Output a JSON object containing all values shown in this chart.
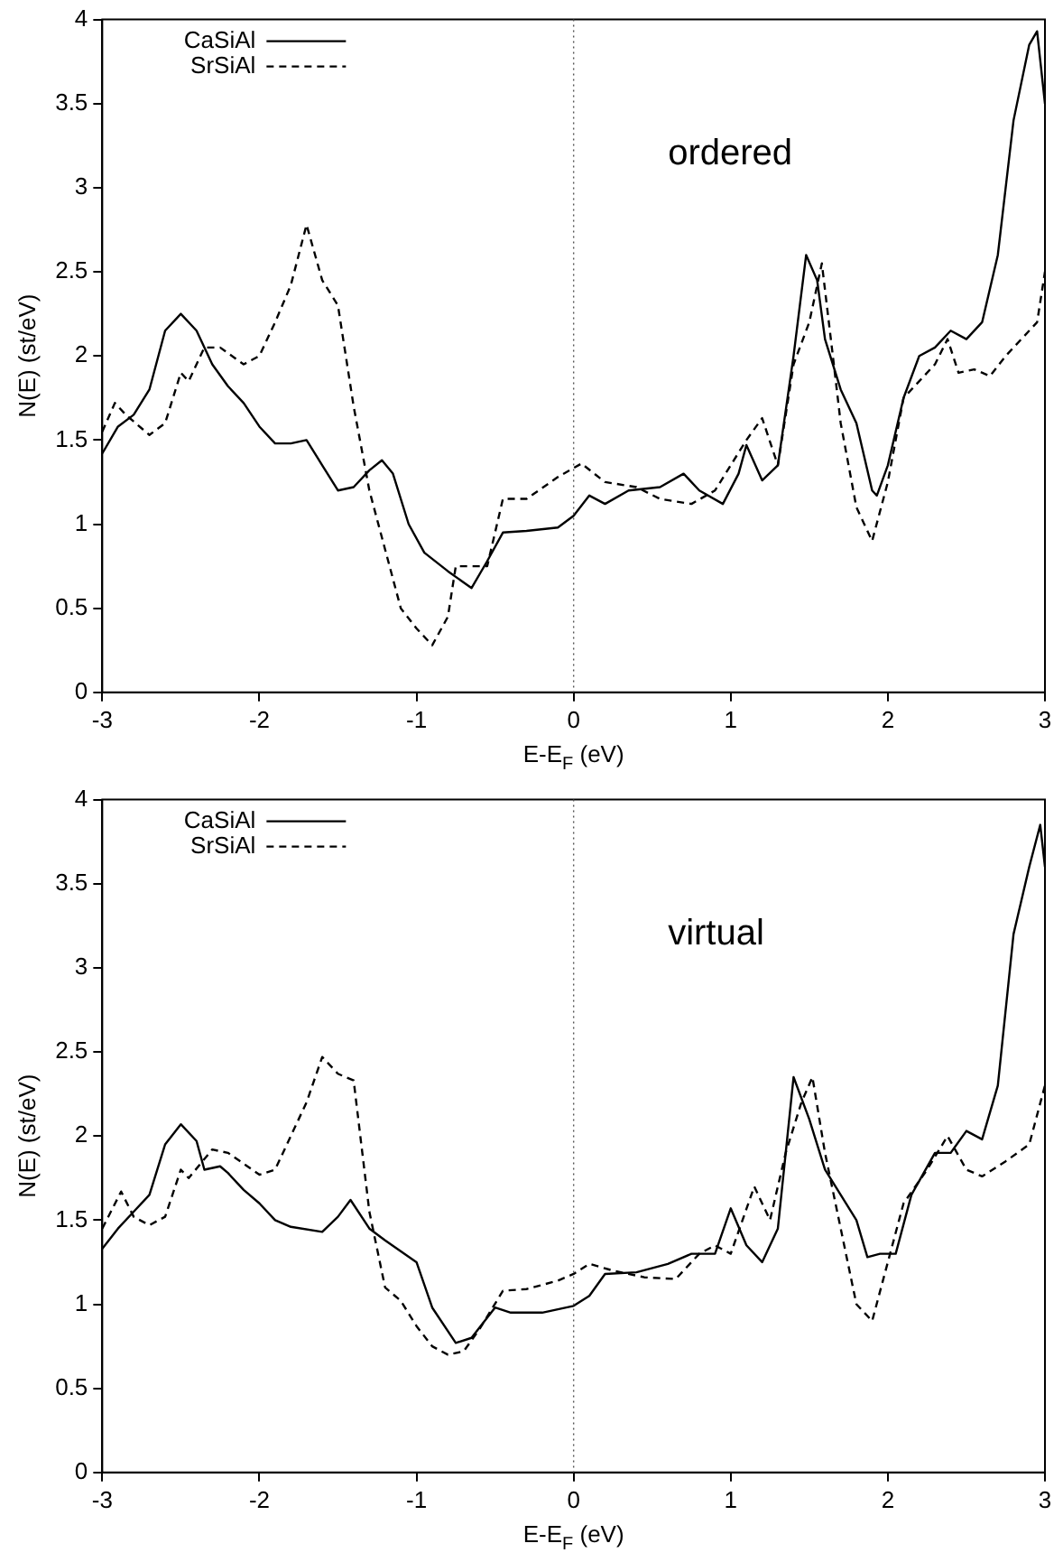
{
  "chart_data": [
    {
      "type": "line",
      "xlabel": "E-E$_{F}$ (eV)",
      "ylabel": "N(E) (st/eV)",
      "annotations": [
        "ordered"
      ],
      "legend": "top left",
      "marker": "none",
      "grid": false,
      "xlim": [
        -3,
        3
      ],
      "xticks": [
        -3,
        -2,
        -1,
        0,
        1,
        2,
        3
      ],
      "ylim": [
        0,
        4
      ],
      "yticks": [
        0,
        0.5,
        1,
        1.5,
        2,
        2.5,
        3,
        3.5,
        4
      ],
      "ref_lines": [
        {
          "axis": "x",
          "value": 0,
          "line_style": "dotted"
        }
      ],
      "series": [
        {
          "name": "CaSiAl",
          "color": "#000000",
          "line_style": "solid",
          "x": [
            -3,
            -2.9,
            -2.8,
            -2.7,
            -2.6,
            -2.5,
            -2.4,
            -2.3,
            -2.2,
            -2.1,
            -2.0,
            -1.9,
            -1.8,
            -1.7,
            -1.6,
            -1.5,
            -1.4,
            -1.3,
            -1.22,
            -1.15,
            -1.05,
            -0.95,
            -0.8,
            -0.65,
            -0.55,
            -0.45,
            -0.3,
            -0.1,
            0,
            0.1,
            0.2,
            0.35,
            0.55,
            0.7,
            0.8,
            0.95,
            1.05,
            1.1,
            1.2,
            1.3,
            1.4,
            1.48,
            1.55,
            1.6,
            1.7,
            1.8,
            1.9,
            1.93,
            2.0,
            2.1,
            2.2,
            2.3,
            2.4,
            2.5,
            2.6,
            2.7,
            2.8,
            2.9,
            2.95,
            3.0
          ],
          "values": [
            1.42,
            1.58,
            1.65,
            1.8,
            2.15,
            2.25,
            2.15,
            1.95,
            1.82,
            1.72,
            1.58,
            1.48,
            1.48,
            1.5,
            1.35,
            1.2,
            1.22,
            1.32,
            1.38,
            1.3,
            1.0,
            0.83,
            0.72,
            0.62,
            0.78,
            0.95,
            0.96,
            0.98,
            1.05,
            1.17,
            1.12,
            1.2,
            1.22,
            1.3,
            1.2,
            1.12,
            1.3,
            1.47,
            1.26,
            1.35,
            2.0,
            2.6,
            2.45,
            2.1,
            1.8,
            1.6,
            1.2,
            1.17,
            1.35,
            1.75,
            2.0,
            2.05,
            2.15,
            2.1,
            2.2,
            2.6,
            3.4,
            3.85,
            3.93,
            3.5
          ]
        },
        {
          "name": "SrSiAl",
          "color": "#000000",
          "line_style": "dashed",
          "x": [
            -3,
            -2.92,
            -2.85,
            -2.7,
            -2.6,
            -2.5,
            -2.45,
            -2.35,
            -2.25,
            -2.1,
            -2.0,
            -1.9,
            -1.8,
            -1.7,
            -1.6,
            -1.5,
            -1.4,
            -1.3,
            -1.2,
            -1.1,
            -1.0,
            -0.9,
            -0.8,
            -0.75,
            -0.55,
            -0.45,
            -0.3,
            -0.1,
            0.05,
            0.2,
            0.4,
            0.55,
            0.75,
            0.9,
            1.0,
            1.1,
            1.2,
            1.3,
            1.4,
            1.5,
            1.58,
            1.65,
            1.7,
            1.8,
            1.9,
            2.0,
            2.1,
            2.2,
            2.3,
            2.38,
            2.45,
            2.55,
            2.65,
            2.75,
            2.85,
            2.95,
            3.0
          ],
          "values": [
            1.55,
            1.72,
            1.65,
            1.53,
            1.6,
            1.9,
            1.85,
            2.05,
            2.05,
            1.95,
            2.0,
            2.2,
            2.42,
            2.78,
            2.45,
            2.3,
            1.7,
            1.2,
            0.85,
            0.5,
            0.38,
            0.28,
            0.45,
            0.75,
            0.75,
            1.15,
            1.15,
            1.28,
            1.36,
            1.25,
            1.22,
            1.15,
            1.12,
            1.2,
            1.35,
            1.5,
            1.63,
            1.35,
            1.95,
            2.2,
            2.55,
            2.0,
            1.6,
            1.1,
            0.9,
            1.25,
            1.75,
            1.85,
            1.95,
            2.1,
            1.9,
            1.92,
            1.88,
            2.0,
            2.1,
            2.2,
            2.5
          ]
        }
      ]
    },
    {
      "type": "line",
      "xlabel": "E-E$_{F}$ (eV)",
      "ylabel": "N(E) (st/eV)",
      "annotations": [
        "virtual"
      ],
      "legend": "top left",
      "marker": "none",
      "grid": false,
      "xlim": [
        -3,
        3
      ],
      "xticks": [
        -3,
        -2,
        -1,
        0,
        1,
        2,
        3
      ],
      "ylim": [
        0,
        4
      ],
      "yticks": [
        0,
        0.5,
        1,
        1.5,
        2,
        2.5,
        3,
        3.5,
        4
      ],
      "ref_lines": [
        {
          "axis": "x",
          "value": 0,
          "line_style": "dotted"
        }
      ],
      "series": [
        {
          "name": "CaSiAl",
          "color": "#000000",
          "line_style": "solid",
          "x": [
            -3,
            -2.9,
            -2.8,
            -2.7,
            -2.6,
            -2.5,
            -2.4,
            -2.35,
            -2.25,
            -2.2,
            -2.1,
            -2.0,
            -1.9,
            -1.8,
            -1.6,
            -1.5,
            -1.42,
            -1.3,
            -1.2,
            -1.0,
            -0.9,
            -0.75,
            -0.65,
            -0.5,
            -0.4,
            -0.2,
            0,
            0.1,
            0.2,
            0.4,
            0.6,
            0.75,
            0.9,
            1.0,
            1.1,
            1.2,
            1.3,
            1.4,
            1.5,
            1.6,
            1.7,
            1.8,
            1.87,
            1.95,
            2.05,
            2.15,
            2.3,
            2.4,
            2.5,
            2.6,
            2.7,
            2.8,
            2.9,
            2.97,
            3.0
          ],
          "values": [
            1.33,
            1.45,
            1.55,
            1.65,
            1.95,
            2.07,
            1.97,
            1.8,
            1.82,
            1.78,
            1.68,
            1.6,
            1.5,
            1.46,
            1.43,
            1.52,
            1.62,
            1.45,
            1.38,
            1.25,
            0.98,
            0.77,
            0.8,
            0.98,
            0.95,
            0.95,
            0.99,
            1.05,
            1.18,
            1.19,
            1.24,
            1.3,
            1.3,
            1.57,
            1.35,
            1.25,
            1.45,
            2.35,
            2.1,
            1.8,
            1.65,
            1.5,
            1.28,
            1.3,
            1.3,
            1.65,
            1.9,
            1.9,
            2.03,
            1.98,
            2.3,
            3.2,
            3.6,
            3.85,
            3.6
          ]
        },
        {
          "name": "SrSiAl",
          "color": "#000000",
          "line_style": "dashed",
          "x": [
            -3,
            -2.88,
            -2.8,
            -2.7,
            -2.6,
            -2.5,
            -2.45,
            -2.3,
            -2.2,
            -2.0,
            -1.9,
            -1.8,
            -1.7,
            -1.6,
            -1.5,
            -1.4,
            -1.3,
            -1.2,
            -1.1,
            -1.0,
            -0.9,
            -0.8,
            -0.7,
            -0.6,
            -0.45,
            -0.3,
            -0.1,
            0,
            0.1,
            0.25,
            0.45,
            0.65,
            0.8,
            0.9,
            1.0,
            1.15,
            1.25,
            1.35,
            1.45,
            1.52,
            1.6,
            1.7,
            1.8,
            1.9,
            2.0,
            2.1,
            2.25,
            2.38,
            2.5,
            2.6,
            2.75,
            2.9,
            3.0
          ],
          "values": [
            1.45,
            1.67,
            1.52,
            1.47,
            1.52,
            1.8,
            1.75,
            1.92,
            1.9,
            1.77,
            1.8,
            2.0,
            2.2,
            2.47,
            2.37,
            2.33,
            1.55,
            1.1,
            1.02,
            0.87,
            0.75,
            0.7,
            0.72,
            0.85,
            1.08,
            1.09,
            1.14,
            1.18,
            1.24,
            1.2,
            1.16,
            1.15,
            1.3,
            1.35,
            1.3,
            1.7,
            1.5,
            1.9,
            2.2,
            2.35,
            1.9,
            1.45,
            1.0,
            0.9,
            1.25,
            1.6,
            1.8,
            2.0,
            1.8,
            1.76,
            1.85,
            1.95,
            2.3
          ]
        }
      ]
    }
  ]
}
